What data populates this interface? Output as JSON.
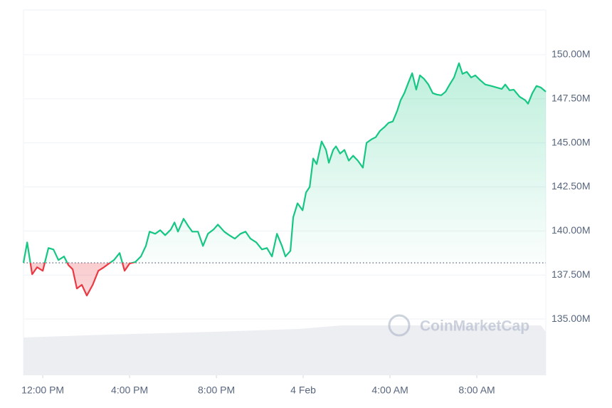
{
  "chart_data": {
    "type": "line",
    "x": [
      -0.89,
      -0.72,
      -0.49,
      -0.26,
      0,
      0.26,
      0.49,
      0.72,
      0.98,
      1.18,
      1.38,
      1.57,
      1.8,
      2.03,
      2.3,
      2.56,
      2.82,
      3.05,
      3.28,
      3.54,
      3.77,
      4,
      4.26,
      4.52,
      4.75,
      4.92,
      5.18,
      5.41,
      5.64,
      5.9,
      6.07,
      6.23,
      6.49,
      6.72,
      6.89,
      7.15,
      7.38,
      7.61,
      7.87,
      8.07,
      8.36,
      8.59,
      8.85,
      9.11,
      9.34,
      9.57,
      9.84,
      10.1,
      10.33,
      10.56,
      10.79,
      11.02,
      11.18,
      11.41,
      11.54,
      11.74,
      11.97,
      12.13,
      12.3,
      12.46,
      12.62,
      12.85,
      13.05,
      13.18,
      13.38,
      13.51,
      13.7,
      13.9,
      14.1,
      14.3,
      14.52,
      14.75,
      14.92,
      15.15,
      15.34,
      15.54,
      15.74,
      15.93,
      16.13,
      16.33,
      16.49,
      16.66,
      16.85,
      17.02,
      17.21,
      17.38,
      17.57,
      17.77,
      17.97,
      18.16,
      18.36,
      18.56,
      18.75,
      18.95,
      19.18,
      19.34,
      19.54,
      19.74,
      19.93,
      20.16,
      20.39,
      20.66,
      20.92,
      21.15,
      21.31,
      21.51,
      21.7,
      21.97,
      22.23,
      22.36,
      22.56,
      22.75,
      22.95,
      23.18
    ],
    "values": [
      138.19,
      139.35,
      137.54,
      137.94,
      137.74,
      139.03,
      138.95,
      138.35,
      138.55,
      138.06,
      137.82,
      136.73,
      136.94,
      136.33,
      136.94,
      137.74,
      137.94,
      138.15,
      138.35,
      138.75,
      137.74,
      138.15,
      138.23,
      138.55,
      139.15,
      139.96,
      139.84,
      140.04,
      139.76,
      140.08,
      140.48,
      139.96,
      140.69,
      140.24,
      139.96,
      139.96,
      139.15,
      139.84,
      140.08,
      140.36,
      139.96,
      139.76,
      139.56,
      139.84,
      139.96,
      139.56,
      139.35,
      138.95,
      139.03,
      138.55,
      139.84,
      139.15,
      138.55,
      138.87,
      140.77,
      141.57,
      141.17,
      142.18,
      142.5,
      144.11,
      143.79,
      145.08,
      144.6,
      143.87,
      144.6,
      144.8,
      144.39,
      144.6,
      143.99,
      144.27,
      143.99,
      143.59,
      145,
      145.2,
      145.32,
      145.68,
      145.89,
      146.13,
      146.21,
      146.81,
      147.42,
      147.82,
      148.43,
      148.95,
      148.02,
      148.83,
      148.63,
      148.31,
      147.82,
      147.74,
      147.7,
      147.9,
      148.31,
      148.71,
      149.52,
      148.91,
      149.03,
      148.71,
      148.83,
      148.55,
      148.31,
      148.23,
      148.14,
      148.06,
      148.31,
      147.98,
      148.02,
      147.62,
      147.42,
      147.22,
      147.82,
      148.23,
      148.14,
      147.9
    ],
    "baseline": 138.19,
    "colors": {
      "up": "#16c784",
      "down": "#ea3943"
    },
    "xlim": [
      -0.89,
      23.18
    ],
    "ylim": [
      131.81,
      152.54
    ],
    "xticks": [
      {
        "value": 0,
        "label": "12:00 PM"
      },
      {
        "value": 4,
        "label": "4:00 PM"
      },
      {
        "value": 8,
        "label": "8:00 PM"
      },
      {
        "value": 12,
        "label": "4 Feb"
      },
      {
        "value": 16,
        "label": "4:00 AM"
      },
      {
        "value": 20,
        "label": "8:00 AM"
      }
    ],
    "yticks": [
      {
        "value": 135,
        "label": "135.00M"
      },
      {
        "value": 137.5,
        "label": "137.50M"
      },
      {
        "value": 140,
        "label": "140.00M"
      },
      {
        "value": 142.5,
        "label": "142.50M"
      },
      {
        "value": 145,
        "label": "145.00M"
      },
      {
        "value": 147.5,
        "label": "147.50M"
      },
      {
        "value": 150,
        "label": "150.00M"
      }
    ],
    "grid": true,
    "watermark": "CoinMarketCap"
  }
}
